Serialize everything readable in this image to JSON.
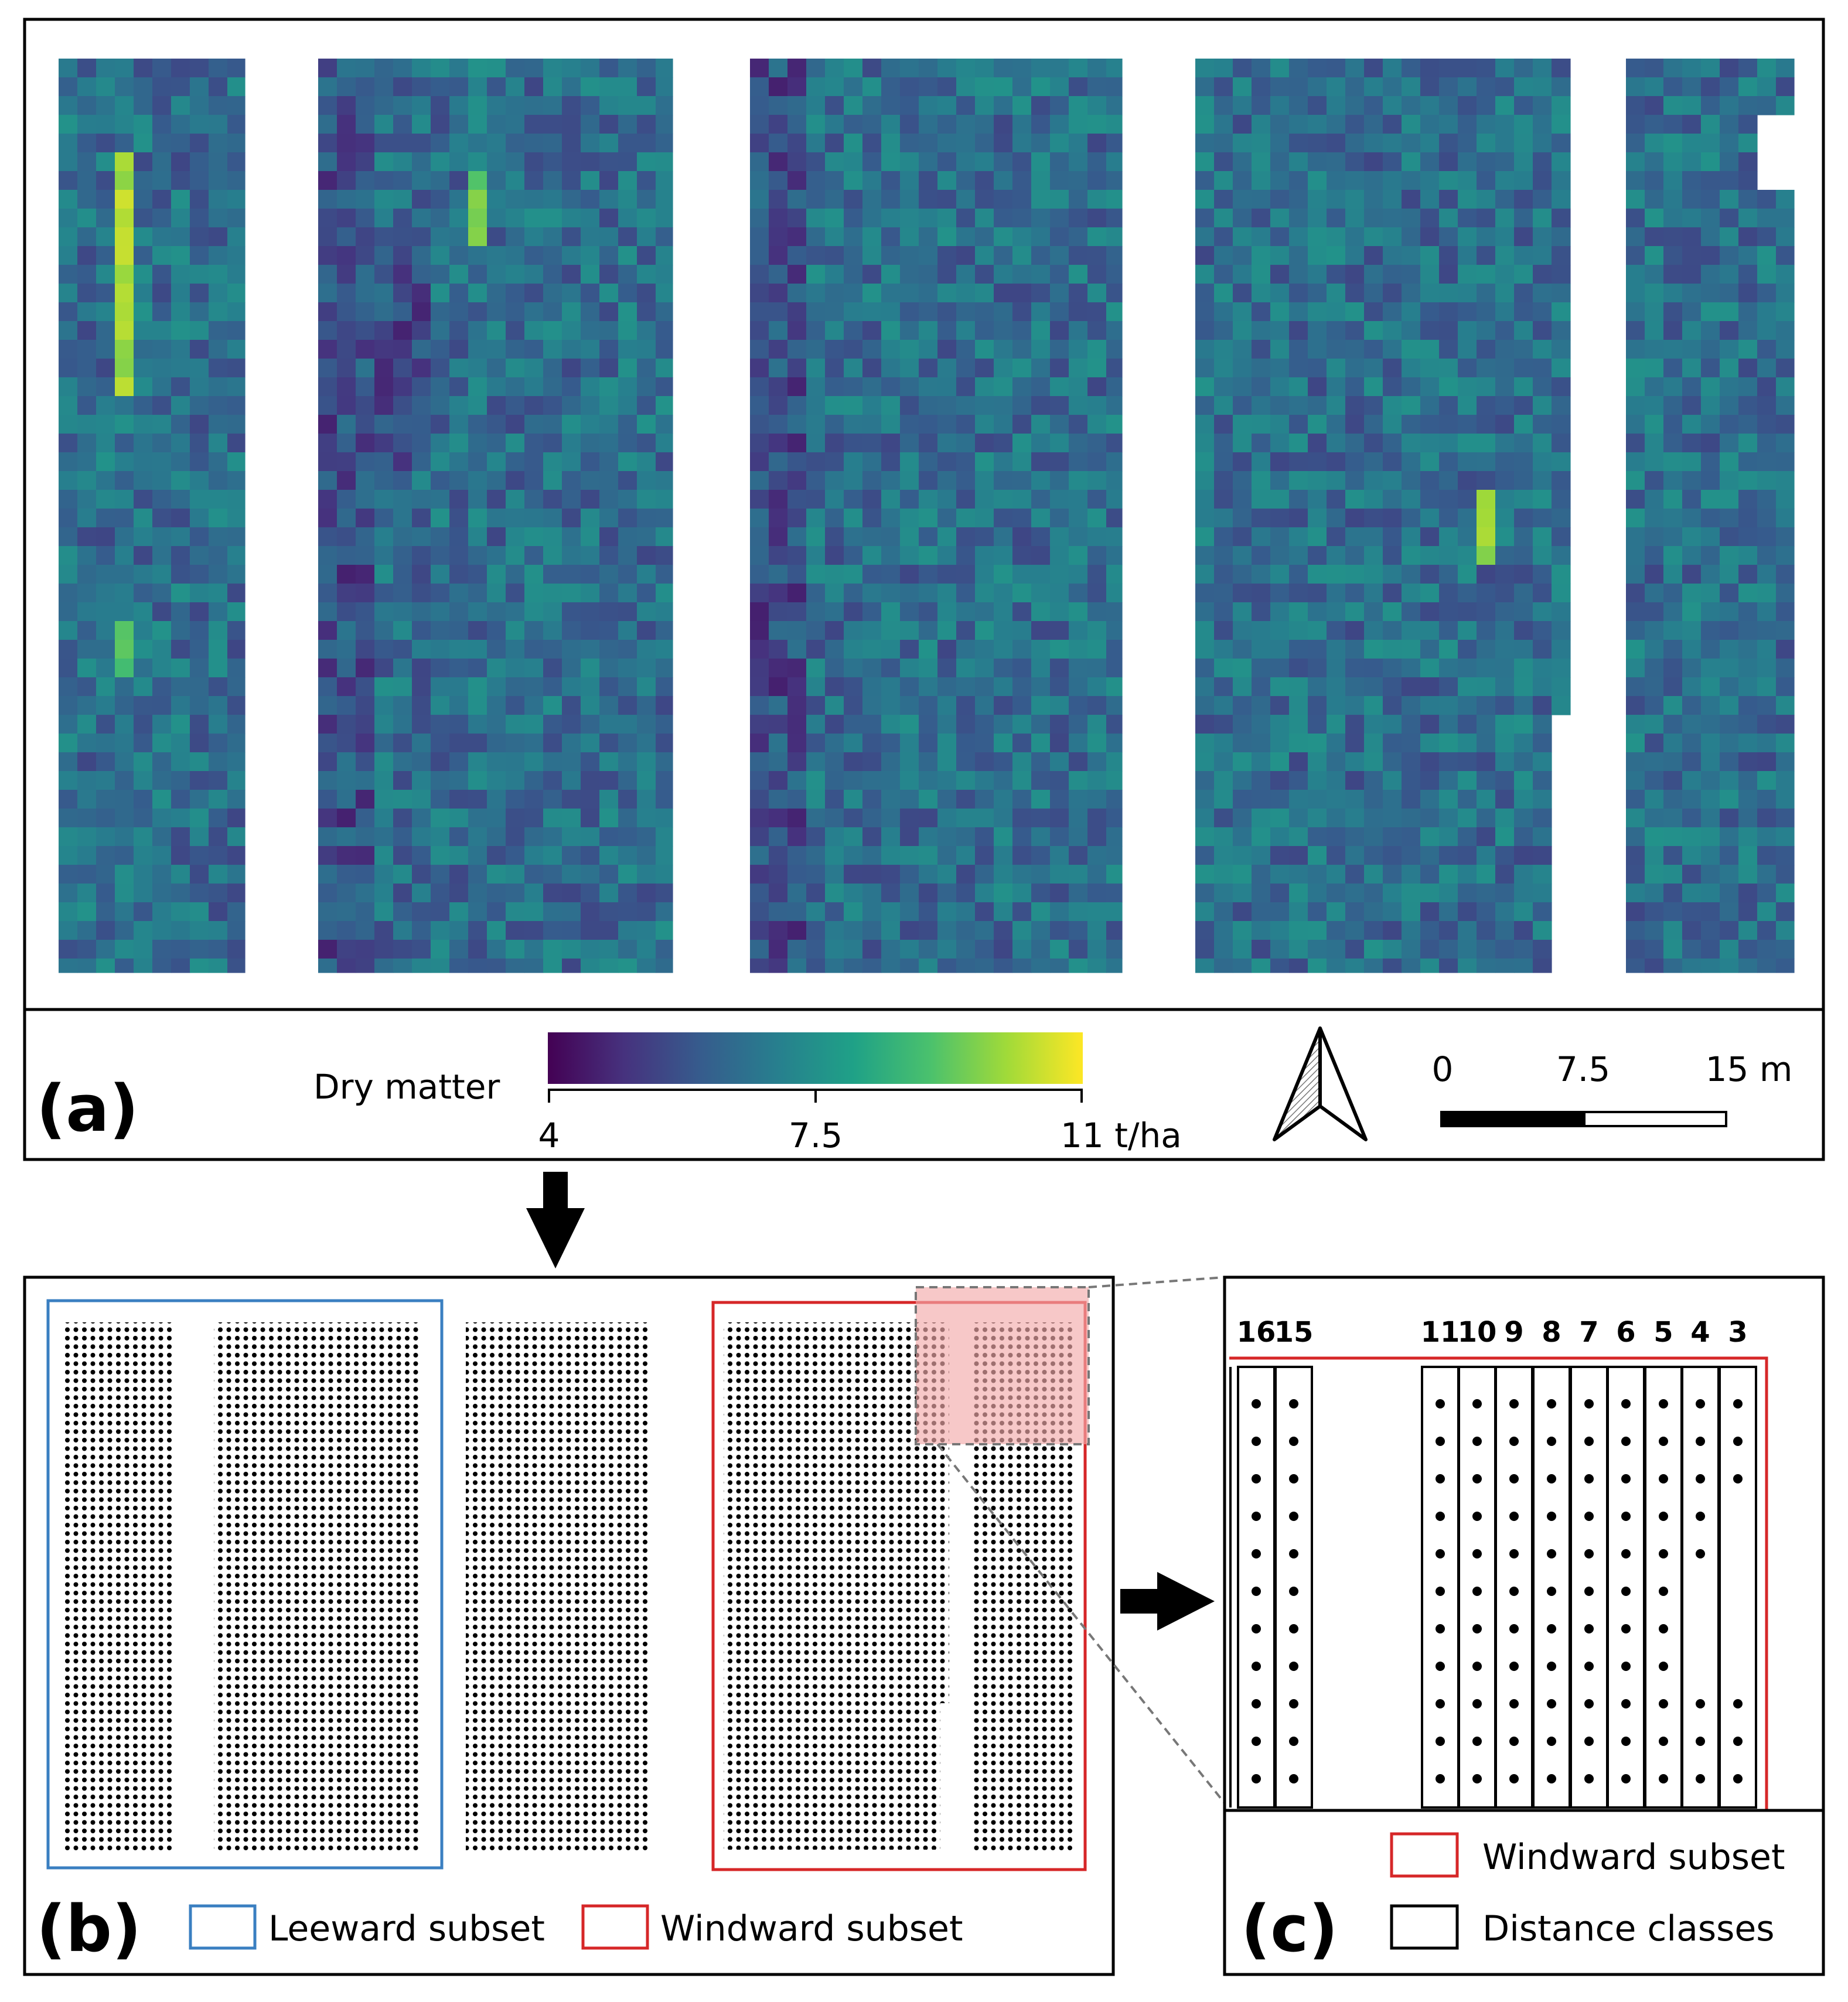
{
  "panel_a": {
    "label": "(a)",
    "colorbar": {
      "title": "Dry matter",
      "min_label": "4",
      "mid_label": "7.5",
      "max_label": "11 t/ha",
      "min": 4,
      "max": 11,
      "colors": [
        "#440154",
        "#46327e",
        "#365c8d",
        "#277f8e",
        "#1fa187",
        "#4ac16d",
        "#a0da39",
        "#fde725"
      ]
    },
    "north_arrow": "north-arrow",
    "scale_bar": {
      "labels": [
        "0",
        "7.5",
        "15 m"
      ]
    }
  },
  "panel_b": {
    "label": "(b)",
    "legend": [
      {
        "label": "Leeward subset",
        "color": "#3a7fc1"
      },
      {
        "label": "Windward subset",
        "color": "#d62728"
      }
    ]
  },
  "panel_c": {
    "label": "(c)",
    "distance_classes": [
      "16",
      "15",
      "11",
      "10",
      "9",
      "8",
      "7",
      "6",
      "5",
      "4",
      "3"
    ],
    "legend": [
      {
        "label": "Windward subset",
        "color": "#d62728"
      },
      {
        "label": "Distance classes",
        "color": "#000000"
      }
    ]
  }
}
